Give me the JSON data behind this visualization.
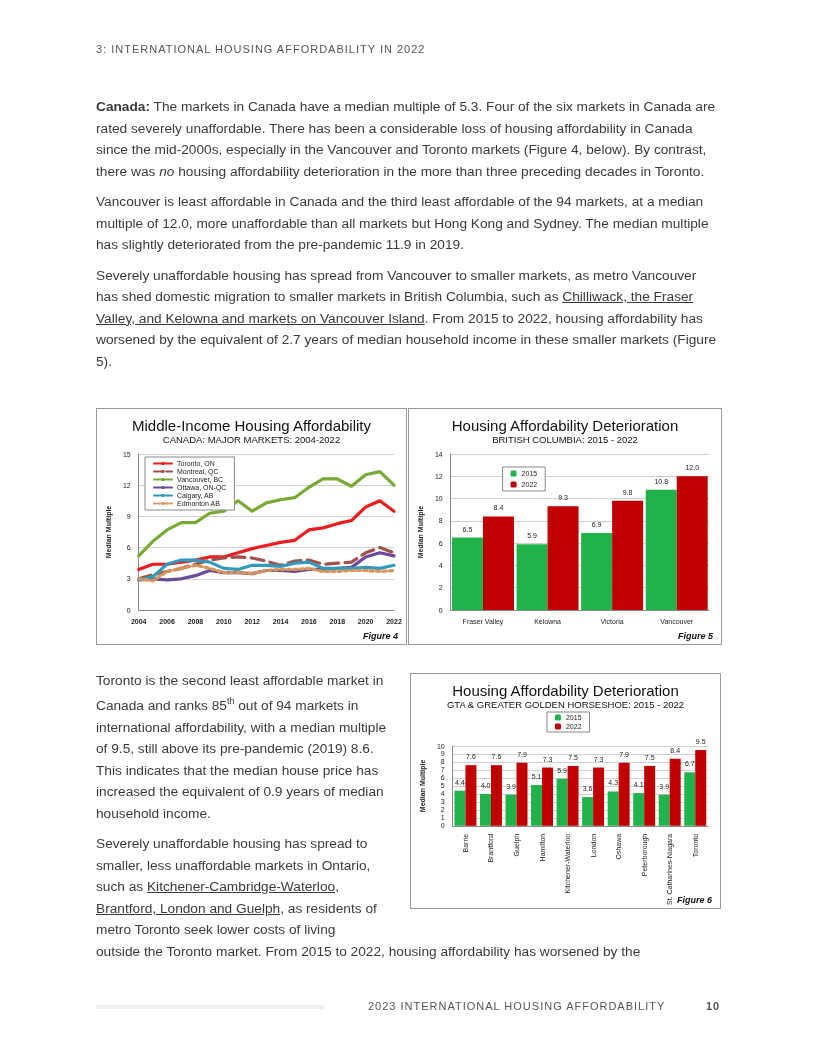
{
  "chart_data": [
    {
      "type": "other",
      "annotations": [
        "3: INTERNATIONAL HOUSING AFFORDABILITY IN 2022",
        "Canada:",
        " The markets in Canada have a median multiple of 5.3. Four of the six markets in Canada are rated severely unaffordable. There has been a considerable loss of housing affordability in Canada since the mid-2000s, especially in the Vancouver and Toronto markets (Figure 4, below). By contrast, there was ",
        "no",
        " housing affordability deterioration in the more than three preceding decades in Toronto.",
        "Vancouver is least affordable in Canada and the third least affordable of the 94 markets, at a median multiple of 12.0, more unaffordable than all markets but Hong Kong and Sydney.  The median multiple has slightly deteriorated from the pre-pandemic 11.9 in 2019.",
        "Severely unaffordable housing has spread from Vancouver to smaller markets, as metro Vancouver has shed domestic migration to smaller markets in British Columbia, such as ",
        "Chilliwack, the Fraser Valley, and Kelowna and markets on Vancouver Island",
        ". From 2015 to 2022, housing affordability has worsened by the equivalent of 2.7 years of median household income in these smaller markets (Figure 5)."
      ]
    },
    {
      "type": "line",
      "title": "Middle-Income Housing Affordability",
      "subtitle": "CANADA: MAJOR MARKETS: 2004-2022",
      "ylabel": "Median Multiple",
      "x": [
        2004,
        2005,
        2006,
        2007,
        2008,
        2009,
        2010,
        2011,
        2012,
        2013,
        2014,
        2015,
        2016,
        2017,
        2018,
        2019,
        2020,
        2021,
        2022
      ],
      "xlim": [
        2004,
        2022
      ],
      "xticks": [
        2004,
        2006,
        2008,
        2010,
        2012,
        2014,
        2016,
        2018,
        2020,
        2022
      ],
      "ylim": [
        0,
        15
      ],
      "yticks": [
        0,
        3,
        6,
        9,
        12,
        15
      ],
      "grid": "y",
      "legend": "top left",
      "marker": "none",
      "series": [
        {
          "name": "Toronto, ON",
          "color": "#ee1c1c",
          "line_style": "solid",
          "values": [
            3.9,
            4.4,
            4.4,
            4.6,
            4.8,
            5.1,
            5.1,
            5.5,
            5.9,
            6.2,
            6.5,
            6.7,
            7.7,
            7.9,
            8.3,
            8.6,
            9.9,
            10.5,
            9.5
          ]
        },
        {
          "name": "Montreal, QC",
          "color": "#a0524a",
          "line_style": "dashed",
          "values": [
            3.0,
            3.4,
            3.7,
            4.0,
            4.4,
            4.8,
            5.0,
            5.1,
            5.0,
            4.7,
            4.3,
            4.7,
            4.8,
            4.4,
            4.5,
            4.6,
            5.5,
            6.0,
            5.5
          ]
        },
        {
          "name": "Vancouver, BC",
          "color": "#77aa33",
          "line_style": "solid",
          "values": [
            5.2,
            6.6,
            7.7,
            8.4,
            8.4,
            9.3,
            9.5,
            10.5,
            9.5,
            10.3,
            10.6,
            10.8,
            11.8,
            12.6,
            12.6,
            11.9,
            13.0,
            13.3,
            12.0
          ]
        },
        {
          "name": "Ottawa, ON-QC",
          "color": "#6a4a9a",
          "line_style": "solid",
          "values": [
            2.9,
            3.0,
            2.9,
            3.0,
            3.3,
            3.8,
            3.6,
            3.6,
            3.5,
            3.8,
            3.8,
            3.7,
            3.9,
            3.9,
            4.0,
            4.1,
            5.1,
            5.5,
            5.2
          ]
        },
        {
          "name": "Calgary, AB",
          "color": "#3399bb",
          "line_style": "solid",
          "values": [
            2.9,
            3.2,
            4.4,
            4.8,
            4.8,
            4.6,
            4.0,
            3.9,
            4.3,
            4.3,
            4.2,
            4.5,
            4.6,
            4.0,
            4.0,
            4.0,
            4.1,
            4.0,
            4.3
          ]
        },
        {
          "name": "Edmonton AB",
          "color": "#d8955a",
          "line_style": "dotted",
          "values": [
            3.0,
            2.8,
            3.7,
            4.0,
            4.3,
            4.0,
            3.6,
            3.6,
            3.5,
            3.8,
            3.9,
            3.9,
            4.0,
            3.7,
            3.7,
            3.8,
            3.8,
            3.7,
            3.8
          ]
        }
      ],
      "annotations": [
        "Figure 4"
      ]
    },
    {
      "type": "bar",
      "title": "Housing Affordability Deterioration",
      "subtitle": "BRITISH COLUMBIA: 2015 - 2022",
      "ylabel": "Median Multiple",
      "categories": [
        "Fraser Valley",
        "Kelowna",
        "Victoria",
        "Vancouver"
      ],
      "ylim": [
        0,
        14
      ],
      "yticks": [
        0,
        2,
        4,
        6,
        8,
        10,
        12,
        14
      ],
      "grid": "y",
      "legend": "top left",
      "series": [
        {
          "name": "2015",
          "color": "#22b24c",
          "values": [
            6.5,
            5.9,
            6.9,
            10.8
          ],
          "value_labels": [
            "6.5",
            "5.9",
            "6.9",
            "10.8"
          ]
        },
        {
          "name": "2022",
          "color": "#c00000",
          "values": [
            8.4,
            9.3,
            9.8,
            12.0
          ],
          "value_labels": [
            "8.4",
            "9.3",
            "9.8",
            "12.0"
          ]
        }
      ],
      "annotations": [
        "Figure 5"
      ]
    },
    {
      "type": "other",
      "annotations": [
        "Toronto is the second least affordable market in Canada and ranks 85$^{th}$ out of 94 markets in international affordability, with a median multiple of 9.5, still above its pre-pandemic (2019) 8.6. This indicates that the median house price has increased the equivalent of 0.9 years of median household income.",
        "Severely unaffordable housing has spread to smaller, less unaffordable markets in Ontario, such as ",
        "Kitchener-Cambridge-Waterloo, Brantford, London and Guelph",
        ", as residents of metro Toronto seek lower costs of living",
        "outside the Toronto market. From 2015 to 2022, housing affordability has worsened by the",
        "2023 INTERNATIONAL HOUSING AFFORDABILITY",
        "10"
      ]
    },
    {
      "type": "bar",
      "title": "Housing Affordability Deterioration",
      "subtitle": "GTA & GREATER GOLDEN HORSESHOE: 2015 - 2022",
      "ylabel": "Median Multiple",
      "categories": [
        "Barrie",
        "Brantford",
        "Guelph",
        "Hamilton",
        "Kitchener-Waterloo",
        "London",
        "Oshawa",
        "Peterborough",
        "St. Catharines-Niagara",
        "Toronto"
      ],
      "ylim": [
        0,
        10
      ],
      "yticks": [
        0,
        1,
        2,
        3,
        4,
        5,
        6,
        7,
        8,
        9,
        10
      ],
      "grid": "y",
      "legend": "top",
      "series": [
        {
          "name": "2015",
          "color": "#22b24c",
          "values": [
            4.4,
            4.0,
            3.9,
            5.1,
            5.9,
            3.6,
            4.3,
            4.1,
            3.9,
            6.7
          ],
          "value_labels": [
            "4.4",
            "4.0",
            "3.9",
            "5.1",
            "5.9",
            "3.6",
            "4.3",
            "4.1",
            "3.9",
            "6.7"
          ]
        },
        {
          "name": "2022",
          "color": "#c00000",
          "values": [
            7.6,
            7.6,
            7.9,
            7.3,
            7.5,
            7.3,
            7.9,
            7.5,
            8.4,
            9.5
          ],
          "value_labels": [
            "7.6",
            "7.6",
            "7.9",
            "7.3",
            "7.5",
            "7.3",
            "7.9",
            "7.5",
            "8.4",
            "9.5"
          ]
        }
      ],
      "annotations": [
        "Figure 6"
      ]
    }
  ]
}
